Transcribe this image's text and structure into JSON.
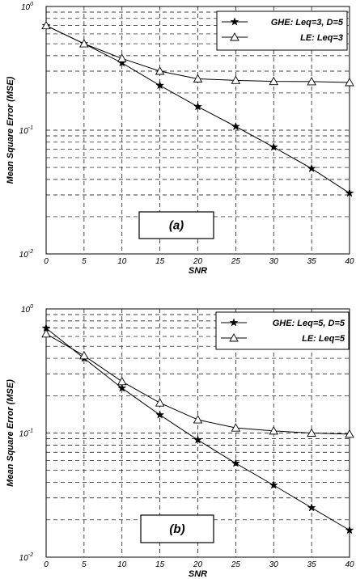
{
  "chart_data": [
    {
      "type": "line",
      "title": "",
      "xlabel": "SNR",
      "ylabel": "Mean Square Error (MSE)",
      "yscale": "log",
      "xlim": [
        0,
        40
      ],
      "ylim": [
        0.01,
        1
      ],
      "grid": true,
      "legend_position": "top-right",
      "annotation": "(a)",
      "x_ticks": [
        "0",
        "5",
        "10",
        "15",
        "20",
        "25",
        "30",
        "35",
        "40"
      ],
      "x": [
        0,
        5,
        10,
        15,
        20,
        25,
        30,
        35,
        40
      ],
      "series": [
        {
          "name": "GHE: Leq=3, D=5",
          "marker": "star",
          "values": [
            0.7,
            0.5,
            0.35,
            0.23,
            0.155,
            0.107,
            0.073,
            0.049,
            0.031
          ]
        },
        {
          "name": "LE: Leq=3",
          "marker": "triangle",
          "values": [
            0.7,
            0.5,
            0.38,
            0.3,
            0.26,
            0.253,
            0.248,
            0.247,
            0.243
          ]
        }
      ]
    },
    {
      "type": "line",
      "title": "",
      "xlabel": "SNR",
      "ylabel": "Mean Square Error (MSE)",
      "yscale": "log",
      "xlim": [
        0,
        40
      ],
      "ylim": [
        0.01,
        1
      ],
      "grid": true,
      "legend_position": "top-right",
      "annotation": "(b)",
      "x_ticks": [
        "0",
        "5",
        "10",
        "15",
        "20",
        "25",
        "30",
        "35",
        "40"
      ],
      "x": [
        0,
        5,
        10,
        15,
        20,
        25,
        30,
        35,
        40
      ],
      "series": [
        {
          "name": "GHE: Leq=5, D=5",
          "marker": "star",
          "values": [
            0.7,
            0.4,
            0.23,
            0.14,
            0.088,
            0.057,
            0.038,
            0.025,
            0.0165
          ]
        },
        {
          "name": "LE: Leq=5",
          "marker": "triangle",
          "values": [
            0.63,
            0.42,
            0.26,
            0.175,
            0.128,
            0.11,
            0.104,
            0.1,
            0.098
          ]
        }
      ]
    }
  ],
  "y_tick_labels": {
    "base": "10",
    "exponents": [
      "0",
      "-1",
      "-2"
    ]
  }
}
